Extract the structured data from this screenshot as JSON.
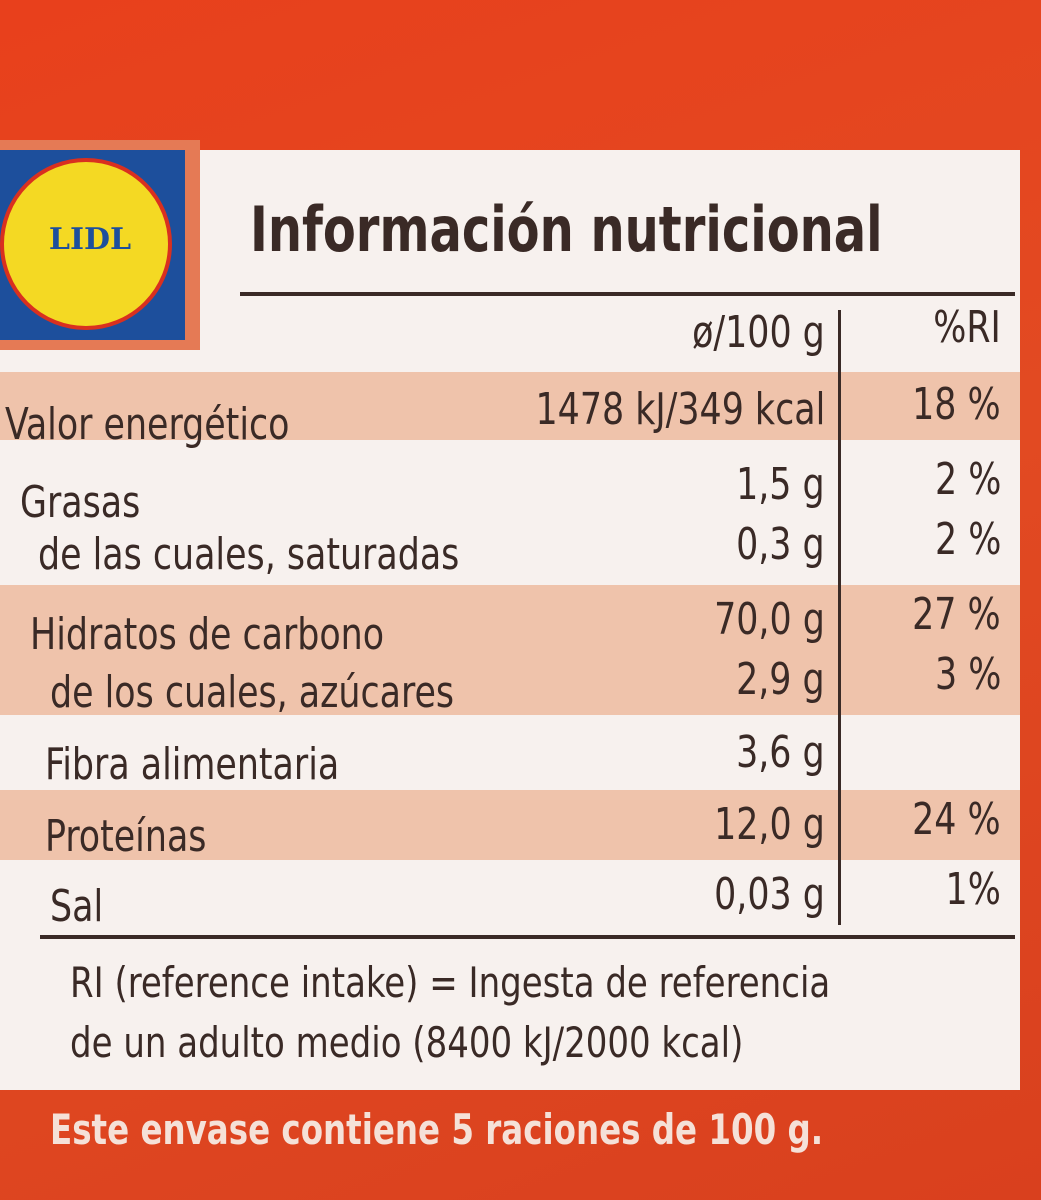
{
  "logo": {
    "text": "LIDL"
  },
  "title": "Información nutricional",
  "table": {
    "header": {
      "per_100g": "ø/100 g",
      "ri": "%RI"
    },
    "rows": [
      [
        "Valor energético",
        "1478 kJ/349 kcal",
        "18 %"
      ],
      [
        "Grasas",
        "1,5 g",
        "2 %"
      ],
      [
        "de las cuales, saturadas",
        "0,3 g",
        "2 %"
      ],
      [
        "Hidratos de carbono",
        "70,0 g",
        "27 %"
      ],
      [
        "de los cuales, azúcares",
        "2,9 g",
        "3 %"
      ],
      [
        "Fibra alimentaria",
        "3,6 g"
      ],
      [
        "Proteínas",
        "12,0 g",
        "24 %"
      ],
      [
        "Sal",
        "0,03 g",
        "1%"
      ]
    ]
  },
  "footnote": [
    "RI (reference intake) = Ingesta de referencia",
    "de un adulto medio (8400 kJ/2000 kcal)"
  ],
  "footer": "Este envase contiene 5 raciones de 100 g."
}
